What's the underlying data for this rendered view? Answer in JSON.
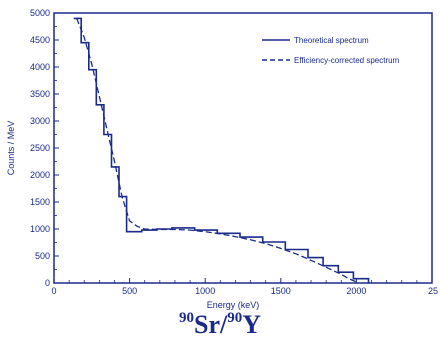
{
  "chart_data": {
    "type": "line",
    "xlabel": "Energy (keV)",
    "ylabel": "Counts / MeV",
    "xlim": [
      0,
      2500
    ],
    "ylim": [
      0,
      5000
    ],
    "xticks": [
      "0",
      "500",
      "1000",
      "1500",
      "2000",
      "25"
    ],
    "yticks": [
      "0",
      "500",
      "1000",
      "1500",
      "2000",
      "2500",
      "3000",
      "3500",
      "4000",
      "4500",
      "5000"
    ],
    "grid": false,
    "legend_position": "top-right",
    "series": [
      {
        "name": "Theoretical spectrum",
        "style": "solid",
        "x": [
          130,
          180,
          180,
          230,
          230,
          280,
          280,
          330,
          330,
          380,
          380,
          430,
          430,
          480,
          480,
          580,
          580,
          680,
          680,
          780,
          780,
          930,
          930,
          1080,
          1080,
          1230,
          1230,
          1380,
          1380,
          1530,
          1530,
          1680,
          1680,
          1780,
          1780,
          1880,
          1880,
          1980,
          1980,
          2080,
          2080
        ],
        "y": [
          4900,
          4900,
          4450,
          4450,
          3950,
          3950,
          3300,
          3300,
          2750,
          2750,
          2150,
          2150,
          1600,
          1600,
          950,
          950,
          980,
          980,
          1000,
          1000,
          1020,
          1020,
          980,
          980,
          920,
          920,
          850,
          850,
          760,
          760,
          620,
          620,
          470,
          470,
          320,
          320,
          200,
          200,
          80,
          80,
          0
        ]
      },
      {
        "name": "Efficiency-corrected spectrum",
        "style": "dashed",
        "x": [
          150,
          200,
          250,
          300,
          350,
          400,
          450,
          500,
          550,
          600,
          700,
          800,
          900,
          1000,
          1100,
          1200,
          1300,
          1400,
          1500,
          1600,
          1700,
          1800,
          1900,
          1950,
          2000
        ],
        "y": [
          4900,
          4550,
          4050,
          3450,
          2850,
          2250,
          1600,
          1150,
          1050,
          1000,
          990,
          990,
          980,
          950,
          910,
          860,
          800,
          730,
          640,
          540,
          420,
          290,
          160,
          80,
          20
        ]
      }
    ]
  },
  "caption": {
    "mass1": "90",
    "sym1": "Sr/",
    "mass2": "90",
    "sym2": "Y"
  }
}
